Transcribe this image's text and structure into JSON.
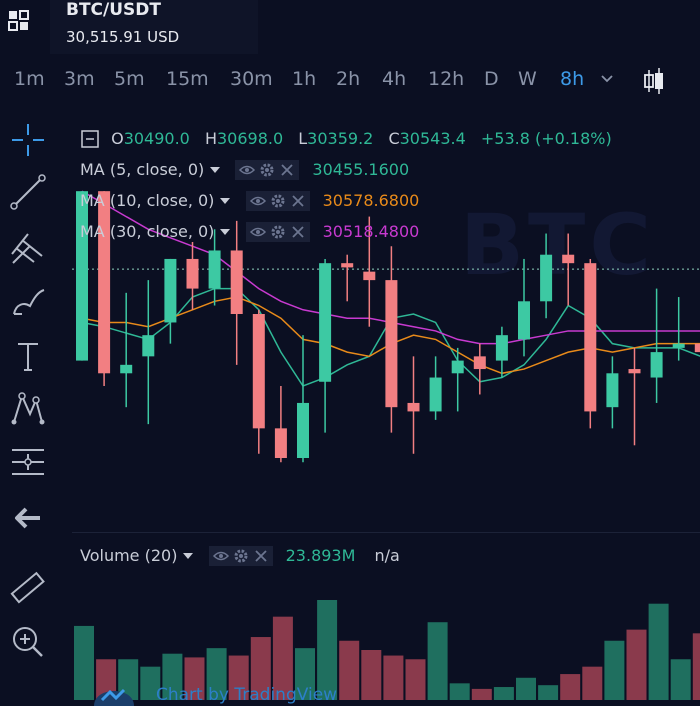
{
  "symbol": {
    "name": "BTC/USDT",
    "price": "30,515.91 USD"
  },
  "intervals": [
    {
      "label": "1m",
      "active": false
    },
    {
      "label": "3m",
      "active": false
    },
    {
      "label": "5m",
      "active": false
    },
    {
      "label": "15m",
      "active": false
    },
    {
      "label": "30m",
      "active": false
    },
    {
      "label": "1h",
      "active": false
    },
    {
      "label": "2h",
      "active": false
    },
    {
      "label": "4h",
      "active": false
    },
    {
      "label": "12h",
      "active": false
    },
    {
      "label": "D",
      "active": false
    },
    {
      "label": "W",
      "active": false
    },
    {
      "label": "8h",
      "active": true
    }
  ],
  "legend": {
    "ohlc": {
      "o_label": "O",
      "o": "30490.0",
      "h_label": "H",
      "h": "30698.0",
      "l_label": "L",
      "l": "30359.2",
      "c_label": "C",
      "c": "30543.4",
      "change": "+53.8 (+0.18%)"
    },
    "ma5": {
      "label": "MA (5, close, 0)",
      "value": "30455.1600",
      "color": "#2fb896"
    },
    "ma10": {
      "label": "MA (10, close, 0)",
      "value": "30578.6800",
      "color": "#e88a1a"
    },
    "ma30": {
      "label": "MA (30, close, 0)",
      "value": "30518.4800",
      "color": "#c83ad0"
    },
    "volume": {
      "label": "Volume (20)",
      "value": "23.893M",
      "extra": "n/a"
    }
  },
  "watermark": "BTC",
  "footer": {
    "text": "Chart by TradingView"
  },
  "colors": {
    "up": "#3dc9a3",
    "down": "#f27f82",
    "background": "#0b0f22",
    "accent": "#3d9ae8"
  },
  "sidebar_tools": [
    "crosshair-icon",
    "trend-line-icon",
    "pitchfork-icon",
    "brush-icon",
    "text-icon",
    "pattern-icon",
    "measure-icon",
    "back-arrow-icon",
    "ruler-icon",
    "zoom-in-icon"
  ],
  "chart_data": {
    "type": "candlestick",
    "candles": [
      {
        "o": 30300,
        "h": 30700,
        "l": 30300,
        "c": 30700
      },
      {
        "o": 30700,
        "h": 30700,
        "l": 30240,
        "c": 30270
      },
      {
        "o": 30270,
        "h": 30460,
        "l": 30190,
        "c": 30290
      },
      {
        "o": 30310,
        "h": 30490,
        "l": 30150,
        "c": 30360
      },
      {
        "o": 30390,
        "h": 30540,
        "l": 30340,
        "c": 30540
      },
      {
        "o": 30540,
        "h": 30580,
        "l": 30420,
        "c": 30470
      },
      {
        "o": 30470,
        "h": 30610,
        "l": 30430,
        "c": 30560
      },
      {
        "o": 30560,
        "h": 30630,
        "l": 30290,
        "c": 30410
      },
      {
        "o": 30410,
        "h": 30420,
        "l": 30080,
        "c": 30140
      },
      {
        "o": 30140,
        "h": 30240,
        "l": 30060,
        "c": 30070
      },
      {
        "o": 30070,
        "h": 30360,
        "l": 30060,
        "c": 30200
      },
      {
        "o": 30250,
        "h": 30540,
        "l": 30130,
        "c": 30530
      },
      {
        "o": 30530,
        "h": 30550,
        "l": 30440,
        "c": 30520
      },
      {
        "o": 30510,
        "h": 30640,
        "l": 30380,
        "c": 30490
      },
      {
        "o": 30490,
        "h": 30570,
        "l": 30130,
        "c": 30190
      },
      {
        "o": 30200,
        "h": 30310,
        "l": 30080,
        "c": 30180
      },
      {
        "o": 30180,
        "h": 30310,
        "l": 30160,
        "c": 30260
      },
      {
        "o": 30270,
        "h": 30330,
        "l": 30180,
        "c": 30300
      },
      {
        "o": 30310,
        "h": 30340,
        "l": 30220,
        "c": 30280
      },
      {
        "o": 30300,
        "h": 30380,
        "l": 30260,
        "c": 30360
      },
      {
        "o": 30350,
        "h": 30540,
        "l": 30310,
        "c": 30440
      },
      {
        "o": 30440,
        "h": 30600,
        "l": 30400,
        "c": 30550
      },
      {
        "o": 30550,
        "h": 30600,
        "l": 30430,
        "c": 30530
      },
      {
        "o": 30530,
        "h": 30540,
        "l": 30140,
        "c": 30180
      },
      {
        "o": 30190,
        "h": 30310,
        "l": 30140,
        "c": 30270
      },
      {
        "o": 30280,
        "h": 30330,
        "l": 30100,
        "c": 30270
      },
      {
        "o": 30260,
        "h": 30470,
        "l": 30200,
        "c": 30320
      },
      {
        "o": 30330,
        "h": 30450,
        "l": 30300,
        "c": 30340
      },
      {
        "o": 30340,
        "h": 30410,
        "l": 30250,
        "c": 30320
      }
    ],
    "ma_series": [
      {
        "name": "MA (5, close, 0)",
        "color": "#2fb896",
        "values": [
          30390,
          30380,
          30365,
          30350,
          30390,
          30450,
          30470,
          30470,
          30420,
          30320,
          30240,
          30260,
          30290,
          30310,
          30400,
          30410,
          30390,
          30300,
          30250,
          30260,
          30290,
          30350,
          30430,
          30400,
          30340,
          30330,
          30330,
          30330,
          30310
        ]
      },
      {
        "name": "MA (10, close, 0)",
        "color": "#e88a1a",
        "values": [
          30400,
          30390,
          30390,
          30380,
          30400,
          30420,
          30440,
          30450,
          30430,
          30400,
          30350,
          30340,
          30320,
          30310,
          30340,
          30360,
          30350,
          30320,
          30290,
          30270,
          30280,
          30300,
          30320,
          30330,
          30320,
          30330,
          30340,
          30340,
          30340
        ]
      },
      {
        "name": "MA (30, close, 0)",
        "color": "#c83ad0",
        "values": [
          30700,
          30670,
          30640,
          30610,
          30590,
          30570,
          30550,
          30510,
          30470,
          30440,
          30420,
          30410,
          30400,
          30400,
          30390,
          30380,
          30370,
          30350,
          30340,
          30340,
          30350,
          30360,
          30370,
          30370,
          30370,
          30370,
          30370,
          30370,
          30370
        ]
      },
      {
        "name": "Volume",
        "color": "#3dc9a3",
        "values": [
          40,
          22,
          22,
          18,
          25,
          23,
          28,
          24,
          34,
          45,
          28,
          54,
          32,
          27,
          24,
          22,
          42,
          9,
          6,
          7,
          12,
          8,
          14,
          18,
          32,
          38,
          52,
          22,
          36
        ]
      }
    ],
    "volume": [
      40,
      22,
      22,
      18,
      25,
      23,
      28,
      24,
      34,
      45,
      28,
      54,
      32,
      27,
      24,
      22,
      42,
      9,
      6,
      7,
      12,
      8,
      14,
      18,
      32,
      38,
      52,
      22,
      36
    ],
    "y_ref": 30515.91,
    "ylim": [
      29900,
      30750
    ],
    "grid": false
  }
}
